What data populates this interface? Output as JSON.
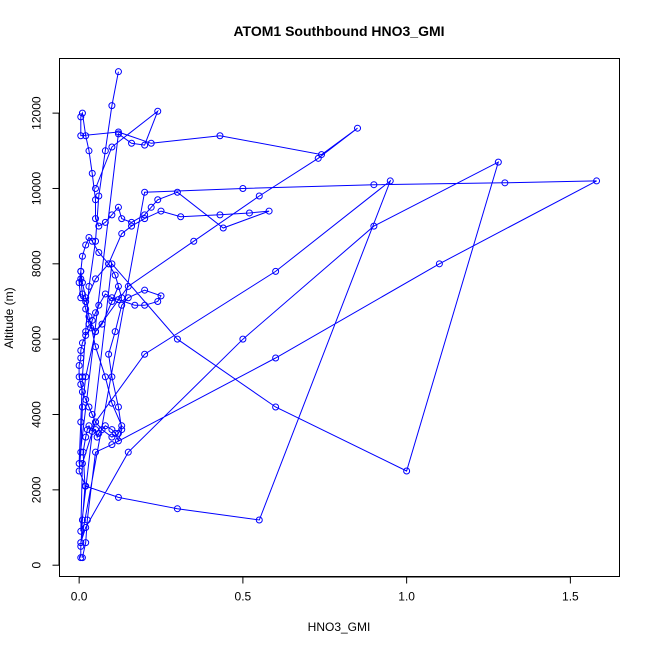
{
  "chart_data": {
    "type": "line",
    "title": "ATOM1 Southbound HNO3_GMI",
    "xlabel": "HNO3_GMI",
    "ylabel": "Altitude (m)",
    "xlim": [
      -0.06,
      1.65
    ],
    "ylim": [
      -300,
      13450
    ],
    "xticks": [
      0.0,
      0.5,
      1.0,
      1.5
    ],
    "xtick_labels": [
      "0.0",
      "0.5",
      "1.0",
      "1.5"
    ],
    "yticks": [
      0,
      2000,
      4000,
      6000,
      8000,
      10000,
      12000
    ],
    "ytick_labels": [
      "0",
      "2000",
      "4000",
      "6000",
      "8000",
      "10000",
      "12000"
    ],
    "line_color": "#0000ff",
    "marker": "open-circle",
    "grid": false,
    "series": [
      {
        "x": [
          0.005,
          0.005,
          0.01,
          0.018,
          0.012,
          0.02,
          0.025,
          0.03,
          0.04,
          0.05,
          0.055,
          0.06,
          0.08,
          0.1,
          0.11,
          0.12,
          0.13,
          0.12,
          0.1,
          0.09,
          0.11,
          0.13,
          0.15,
          0.2,
          0.25,
          0.24,
          0.2,
          0.17,
          0.12,
          0.1,
          0.08,
          0.06,
          0.05,
          0.04,
          0.035,
          0.02,
          0.01,
          0.005,
          0.005,
          0.0,
          0.0,
          0.005,
          0.01,
          0.02,
          0.03,
          0.04,
          0.05,
          0.07,
          0.1,
          0.12,
          0.13,
          0.1,
          0.08,
          0.05,
          0.03,
          0.02,
          0.01,
          0.005,
          0.005,
          0.01,
          0.02,
          0.03,
          0.05,
          0.07,
          0.1,
          0.12,
          0.13,
          0.11,
          0.09,
          0.06,
          0.04,
          0.03,
          0.02,
          0.01,
          0.005,
          0.0,
          0.005,
          0.02,
          0.05,
          0.09,
          0.13,
          0.16,
          0.2,
          0.25,
          0.31,
          0.43,
          0.52,
          0.58,
          0.44,
          0.3,
          0.24,
          0.22,
          0.2,
          0.16,
          0.13,
          0.12,
          0.1,
          0.08,
          0.06,
          0.05,
          0.05,
          0.04,
          0.03,
          0.02,
          0.01,
          0.005,
          0.005,
          0.12,
          0.22,
          0.43,
          0.74,
          0.85,
          0.73,
          0.55,
          0.35,
          0.15,
          0.05,
          0.02,
          0.01,
          0.005,
          0.0,
          0.02,
          0.12,
          0.3,
          0.55,
          0.95,
          0.6,
          0.2,
          0.05,
          0.01,
          0.005,
          0.1,
          0.3,
          0.6,
          1.0,
          1.28,
          0.9,
          0.5,
          0.15,
          0.02,
          0.005,
          0.2,
          0.5,
          0.9,
          1.3,
          1.58,
          1.1,
          0.6,
          0.1,
          0.05,
          0.025,
          0.02,
          0.01
        ],
        "y": [
          200,
          500,
          1200,
          2100,
          3000,
          3400,
          3600,
          3700,
          3550,
          3600,
          3400,
          3500,
          3700,
          3600,
          3500,
          3300,
          3600,
          4200,
          5000,
          5600,
          6200,
          6900,
          7100,
          7300,
          7150,
          7000,
          6900,
          6900,
          7050,
          7100,
          7200,
          6900,
          6700,
          6500,
          6300,
          6100,
          5900,
          5700,
          5500,
          5300,
          5000,
          4800,
          4600,
          4400,
          4200,
          4000,
          3800,
          3600,
          3400,
          3500,
          3700,
          4300,
          5000,
          5800,
          6600,
          7100,
          7500,
          7800,
          7600,
          7200,
          6800,
          6400,
          6200,
          6400,
          7000,
          7400,
          7100,
          7700,
          8000,
          8300,
          8600,
          8700,
          8500,
          8200,
          7800,
          7500,
          7100,
          7000,
          7600,
          8000,
          8800,
          9000,
          9200,
          9400,
          9250,
          9300,
          9350,
          9400,
          8950,
          9900,
          9700,
          9500,
          9300,
          9100,
          9200,
          9500,
          9300,
          9100,
          9000,
          9200,
          9700,
          10400,
          11000,
          11400,
          12000,
          11900,
          11400,
          11500,
          11200,
          11400,
          10900,
          11600,
          10800,
          9800,
          8600,
          7400,
          6200,
          5000,
          4200,
          3000,
          2500,
          2100,
          1800,
          1500,
          1200,
          10200,
          7800,
          5600,
          3800,
          2700,
          900,
          8000,
          6000,
          4200,
          2500,
          10700,
          9000,
          6000,
          3000,
          1000,
          600,
          9900,
          10000,
          10100,
          10150,
          10200,
          8000,
          5500,
          3200,
          3000,
          1200,
          600,
          200
        ]
      },
      {
        "x": [
          0.12,
          0.1,
          0.08,
          0.06,
          0.05,
          0.03,
          0.02,
          0.01,
          0.005,
          0.0,
          0.12,
          0.16,
          0.2,
          0.24,
          0.1,
          0.05
        ],
        "y": [
          13100,
          12200,
          11000,
          9800,
          8600,
          7400,
          6200,
          5000,
          3800,
          2700,
          11450,
          11200,
          11150,
          12050,
          11100,
          10000
        ]
      }
    ]
  }
}
